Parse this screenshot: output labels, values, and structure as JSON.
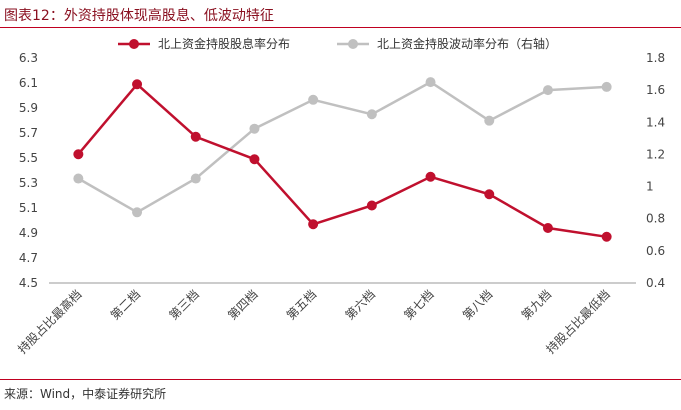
{
  "header": {
    "title": "图表12：外资持股体现高股息、低波动特征"
  },
  "footer": {
    "source": "来源：Wind，中泰证券研究所"
  },
  "chart_data": {
    "type": "line",
    "categories": [
      "持股占比最高档",
      "第二档",
      "第三档",
      "第四档",
      "第五档",
      "第六档",
      "第七档",
      "第八档",
      "第九档",
      "持股占比最低档"
    ],
    "series": [
      {
        "name": "北上资金持股股息率分布",
        "axis": "left",
        "color": "#c0102e",
        "values": [
          5.53,
          6.09,
          5.67,
          5.49,
          4.97,
          5.12,
          5.35,
          5.21,
          4.94,
          4.87
        ]
      },
      {
        "name": "北上资金持股波动率分布（右轴）",
        "axis": "right",
        "color": "#c0c0c0",
        "values": [
          1.05,
          0.84,
          1.05,
          1.36,
          1.54,
          1.45,
          1.65,
          1.41,
          1.6,
          1.62
        ]
      }
    ],
    "y_left": {
      "ylim": [
        4.5,
        6.3
      ],
      "ticks": [
        "4.5",
        "4.7",
        "4.9",
        "5.1",
        "5.3",
        "5.5",
        "5.7",
        "5.9",
        "6.1",
        "6.3"
      ]
    },
    "y_right": {
      "ylim": [
        0.4,
        1.8
      ],
      "ticks": [
        "0.4",
        "0.6",
        "0.8",
        "1",
        "1.2",
        "1.4",
        "1.6",
        "1.8"
      ]
    },
    "grid": false,
    "legend": "top"
  }
}
